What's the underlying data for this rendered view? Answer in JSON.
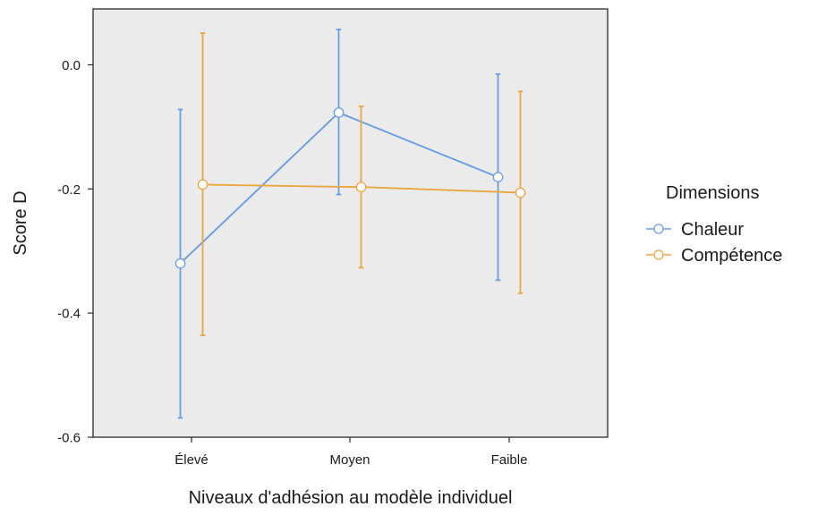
{
  "chart_data": {
    "type": "line",
    "categories": [
      "Élevé",
      "Moyen",
      "Faible"
    ],
    "xlabel": "Niveaux d'adhésion au modèle individuel",
    "ylabel": "Score D",
    "ylim": [
      -0.6,
      0.09
    ],
    "yticks": [
      0.0,
      -0.2,
      -0.4,
      -0.6
    ],
    "ytick_labels": [
      "0.0",
      "-0.2",
      "-0.4",
      "-0.6"
    ],
    "grid": false,
    "legend": {
      "title": "Dimensions",
      "position": "right"
    },
    "series": [
      {
        "name": "Chaleur",
        "color": "#6a9de6",
        "values": [
          -0.32,
          -0.077,
          -0.181
        ],
        "lower": [
          -0.569,
          -0.209,
          -0.347
        ],
        "upper": [
          -0.072,
          0.057,
          -0.015
        ]
      },
      {
        "name": "Compétence",
        "color": "#eba642",
        "values": [
          -0.193,
          -0.197,
          -0.206
        ],
        "lower": [
          -0.436,
          -0.327,
          -0.368
        ],
        "upper": [
          0.051,
          -0.067,
          -0.043
        ]
      }
    ]
  }
}
